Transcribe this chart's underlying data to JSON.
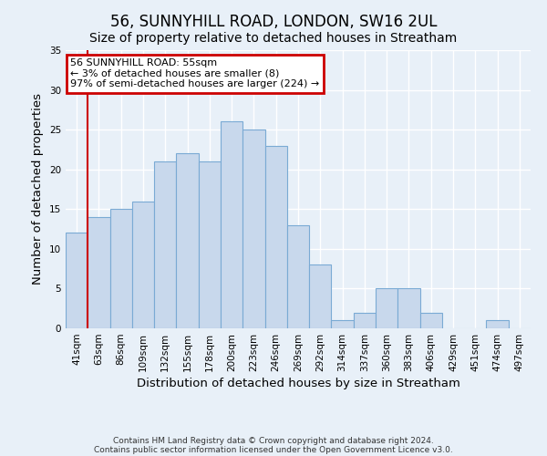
{
  "title": "56, SUNNYHILL ROAD, LONDON, SW16 2UL",
  "subtitle": "Size of property relative to detached houses in Streatham",
  "xlabel": "Distribution of detached houses by size in Streatham",
  "ylabel": "Number of detached properties",
  "footnote1": "Contains HM Land Registry data © Crown copyright and database right 2024.",
  "footnote2": "Contains public sector information licensed under the Open Government Licence v3.0.",
  "bin_labels": [
    "41sqm",
    "63sqm",
    "86sqm",
    "109sqm",
    "132sqm",
    "155sqm",
    "178sqm",
    "200sqm",
    "223sqm",
    "246sqm",
    "269sqm",
    "292sqm",
    "314sqm",
    "337sqm",
    "360sqm",
    "383sqm",
    "406sqm",
    "429sqm",
    "451sqm",
    "474sqm",
    "497sqm"
  ],
  "bar_values": [
    12,
    14,
    15,
    16,
    21,
    22,
    21,
    26,
    25,
    23,
    13,
    8,
    1,
    2,
    5,
    5,
    2,
    0,
    0,
    1,
    0
  ],
  "bar_color": "#c8d8ec",
  "bar_edge_color": "#7aaad4",
  "annotation_box_text": "56 SUNNYHILL ROAD: 55sqm\n← 3% of detached houses are smaller (8)\n97% of semi-detached houses are larger (224) →",
  "annotation_box_color": "#ffffff",
  "annotation_box_edge_color": "#cc0000",
  "ylim": [
    0,
    35
  ],
  "yticks": [
    0,
    5,
    10,
    15,
    20,
    25,
    30,
    35
  ],
  "bg_color": "#e8f0f8",
  "marker_line_color": "#cc0000",
  "red_line_x": 0.5,
  "title_fontsize": 12,
  "subtitle_fontsize": 10,
  "axis_label_fontsize": 9.5,
  "tick_fontsize": 7.5,
  "footnote_fontsize": 6.5,
  "annotation_fontsize": 8
}
